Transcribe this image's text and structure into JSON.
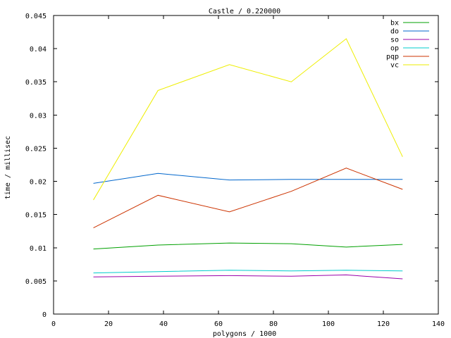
{
  "chart_data": {
    "type": "line",
    "title": "Castle / 0.220000",
    "xlabel": "polygons / 1000",
    "ylabel": "time / millisec",
    "xlim": [
      0,
      140
    ],
    "ylim": [
      0,
      0.045
    ],
    "xticks": [
      0,
      20,
      40,
      60,
      80,
      100,
      120,
      140
    ],
    "yticks": [
      0,
      0.005,
      0.01,
      0.015,
      0.02,
      0.025,
      0.03,
      0.035,
      0.04,
      0.045
    ],
    "xtick_labels": [
      "0",
      "20",
      "40",
      "60",
      "80",
      "100",
      "120",
      "140"
    ],
    "ytick_labels": [
      "0",
      "0.005",
      "0.01",
      "0.015",
      "0.02",
      "0.025",
      "0.03",
      "0.035",
      "0.04",
      "0.045"
    ],
    "grid": false,
    "legend_position": "top-right",
    "x": [
      14.5,
      38,
      64,
      86.5,
      106.5,
      127
    ],
    "series": [
      {
        "name": "bx",
        "color": "#00a000",
        "values": [
          0.0098,
          0.0104,
          0.0107,
          0.0106,
          0.0101,
          0.0105
        ]
      },
      {
        "name": "do",
        "color": "#0066cc",
        "values": [
          0.0197,
          0.0212,
          0.0202,
          0.0203,
          0.0203,
          0.0203
        ]
      },
      {
        "name": "so",
        "color": "#9900aa",
        "values": [
          0.0056,
          0.0057,
          0.0058,
          0.0057,
          0.0059,
          0.0053
        ]
      },
      {
        "name": "op",
        "color": "#00cccc",
        "values": [
          0.0062,
          0.0064,
          0.0066,
          0.0065,
          0.0066,
          0.0065
        ]
      },
      {
        "name": "pqp",
        "color": "#cc3300",
        "values": [
          0.013,
          0.0179,
          0.0154,
          0.0185,
          0.022,
          0.0188
        ]
      },
      {
        "name": "vc",
        "color": "#eeee00",
        "values": [
          0.0172,
          0.0337,
          0.0376,
          0.035,
          0.0415,
          0.0237
        ]
      }
    ]
  }
}
